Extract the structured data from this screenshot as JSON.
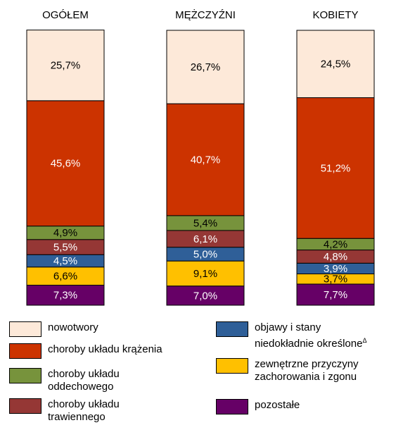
{
  "chart_data": {
    "type": "stacked_bar",
    "categories": [
      "OGÓŁEM",
      "MĘŻCZYŹNI",
      "KOBIETY"
    ],
    "ylim": [
      0,
      100
    ],
    "series": [
      {
        "name": "nowotwory",
        "color": "#fde9d9",
        "label_color": "#000000",
        "values": [
          25.7,
          26.7,
          24.5
        ],
        "value_labels": [
          "25,7%",
          "26,7%",
          "24,5%"
        ]
      },
      {
        "name": "choroby układu krążenia",
        "color": "#cc3300",
        "label_color": "#ffffff",
        "values": [
          45.6,
          40.7,
          51.2
        ],
        "value_labels": [
          "45,6%",
          "40,7%",
          "51,2%"
        ]
      },
      {
        "name": "choroby układu oddechowego",
        "color": "#77933c",
        "label_color": "#000000",
        "values": [
          4.9,
          5.4,
          4.2
        ],
        "value_labels": [
          "4,9%",
          "5,4%",
          "4,2%"
        ]
      },
      {
        "name": "choroby układu trawiennego",
        "color": "#953735",
        "label_color": "#ffffff",
        "values": [
          5.5,
          6.1,
          4.8
        ],
        "value_labels": [
          "5,5%",
          "6,1%",
          "4,8%"
        ]
      },
      {
        "name": "objawy i stany niedokładnie określone",
        "name_superscript": "Δ",
        "color": "#2f5f98",
        "label_color": "#ffffff",
        "values": [
          4.5,
          5.0,
          3.9
        ],
        "value_labels": [
          "4,5%",
          "5,0%",
          "3,9%"
        ]
      },
      {
        "name": "zewnętrzne przyczyny zachorowania i zgonu",
        "color": "#ffc000",
        "label_color": "#000000",
        "values": [
          6.6,
          9.1,
          3.7
        ],
        "value_labels": [
          "6,6%",
          "9,1%",
          "3,7%"
        ]
      },
      {
        "name": "pozostałe",
        "color": "#660066",
        "label_color": "#ffffff",
        "values": [
          7.3,
          7.0,
          7.7
        ],
        "value_labels": [
          "7,3%",
          "7,0%",
          "7,7%"
        ]
      }
    ]
  }
}
